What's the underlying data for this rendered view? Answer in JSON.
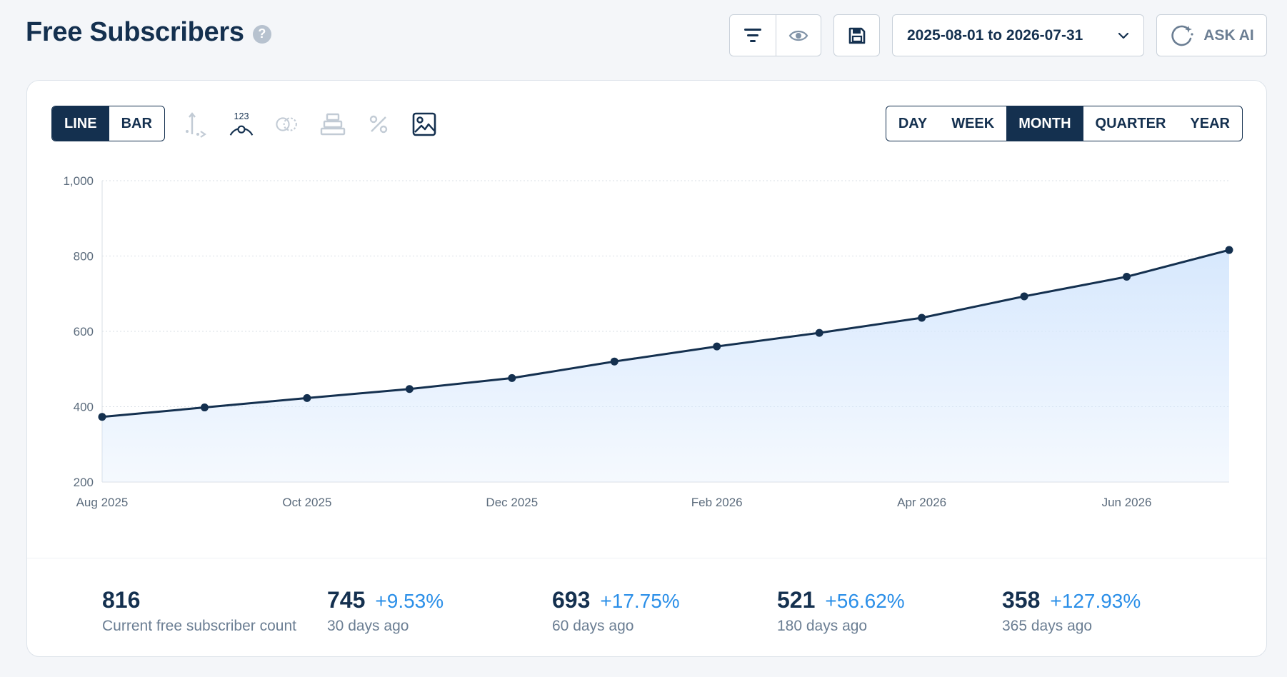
{
  "header": {
    "title": "Free Subscribers",
    "help_icon": "question-circle-icon",
    "date_range": "2025-08-01 to 2026-07-31",
    "ask_ai_label": "ASK AI"
  },
  "chart_controls": {
    "type_options": [
      "LINE",
      "BAR"
    ],
    "type_selected": "LINE",
    "tool_icons": [
      "axis-scale-icon",
      "data-labels-icon",
      "compare-icon",
      "stack-icon",
      "percent-icon",
      "image-export-icon"
    ],
    "data_labels_text": "123",
    "granularity_options": [
      "DAY",
      "WEEK",
      "MONTH",
      "QUARTER",
      "YEAR"
    ],
    "granularity_selected": "MONTH"
  },
  "colors": {
    "primary": "#14304f",
    "accent": "#2b8fe8",
    "area_fill": "#d7e8fd",
    "muted": "#6b7e93"
  },
  "chart_data": {
    "type": "area",
    "title": "",
    "xlabel": "",
    "ylabel": "",
    "x": [
      "Aug 2025",
      "Sep 2025",
      "Oct 2025",
      "Nov 2025",
      "Dec 2025",
      "Jan 2026",
      "Feb 2026",
      "Mar 2026",
      "Apr 2026",
      "May 2026",
      "Jun 2026",
      "Jul 2026"
    ],
    "x_tick_labels": [
      "Aug 2025",
      "Oct 2025",
      "Dec 2025",
      "Feb 2026",
      "Apr 2026",
      "Jun 2026"
    ],
    "series": [
      {
        "values": [
          373,
          398,
          423,
          447,
          476,
          520,
          560,
          596,
          636,
          693,
          745,
          816
        ]
      }
    ],
    "ylim": [
      200,
      1000
    ],
    "y_ticks": [
      "200",
      "400",
      "600",
      "800",
      "1,000"
    ],
    "y_tick_values": [
      200,
      400,
      600,
      800,
      1000
    ],
    "grid": true,
    "legend": "none"
  },
  "stats": [
    {
      "value": "816",
      "change": "",
      "label": "Current free subscriber count"
    },
    {
      "value": "745",
      "change": "+9.53%",
      "label": "30 days ago"
    },
    {
      "value": "693",
      "change": "+17.75%",
      "label": "60 days ago"
    },
    {
      "value": "521",
      "change": "+56.62%",
      "label": "180 days ago"
    },
    {
      "value": "358",
      "change": "+127.93%",
      "label": "365 days ago"
    }
  ]
}
